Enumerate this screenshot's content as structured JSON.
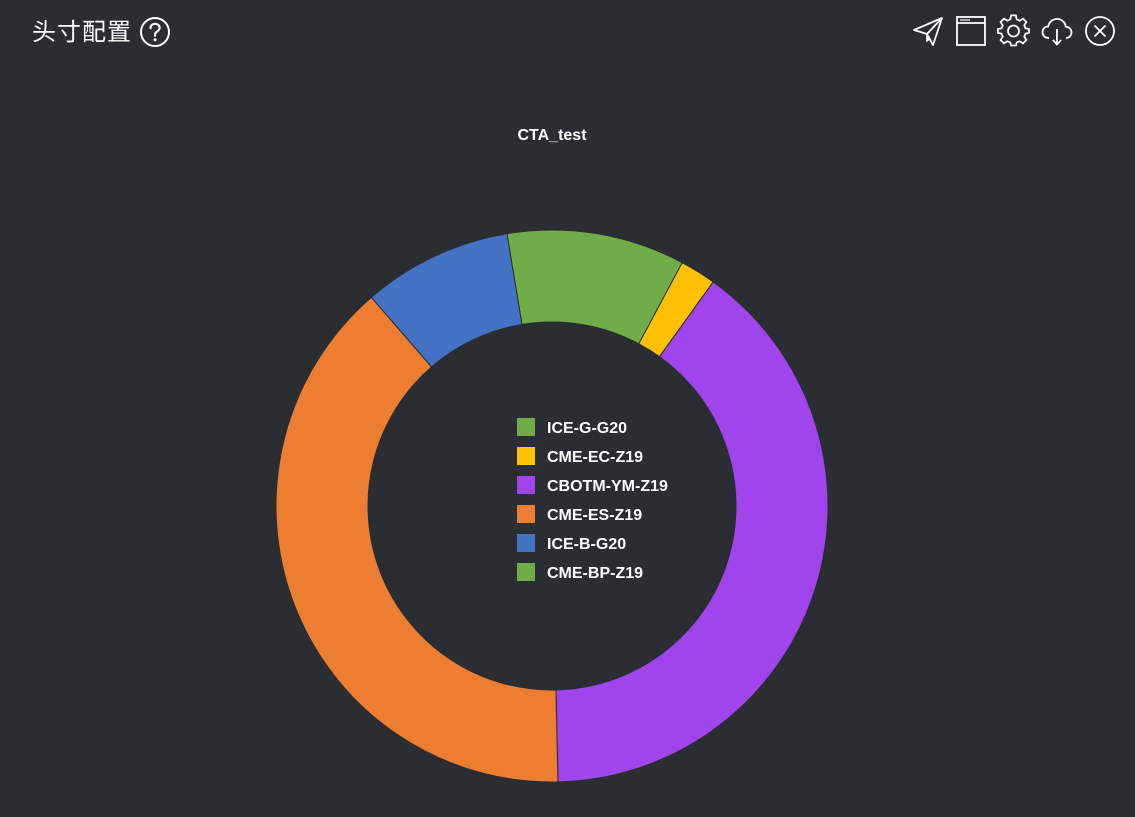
{
  "header": {
    "title": "头寸配置",
    "help_icon": "question-circle-icon",
    "toolbar": [
      {
        "name": "send-icon"
      },
      {
        "name": "window-icon"
      },
      {
        "name": "gear-icon"
      },
      {
        "name": "cloud-download-icon"
      },
      {
        "name": "close-circle-icon"
      }
    ]
  },
  "colors": {
    "background": "#2a2d31",
    "text": "#ffffff"
  },
  "chart_data": {
    "type": "pie",
    "donut": true,
    "title": "CTA_test",
    "legend_position": "center",
    "slices": [
      {
        "label": "ICE-G-G20",
        "value": 9.9,
        "color": "#70ad47"
      },
      {
        "label": "CME-EC-Z19",
        "value": 2.0,
        "color": "#ffc000"
      },
      {
        "label": "CBOTM-YM-Z19",
        "value": 37.7,
        "color": "#a044ee"
      },
      {
        "label": "CME-ES-Z19",
        "value": 37.0,
        "color": "#ed7d31"
      },
      {
        "label": "ICE-B-G20",
        "value": 8.3,
        "color": "#4472c4"
      },
      {
        "label": "CME-BP-Z19",
        "value": 0.0,
        "color": "#70ad47"
      }
    ]
  }
}
